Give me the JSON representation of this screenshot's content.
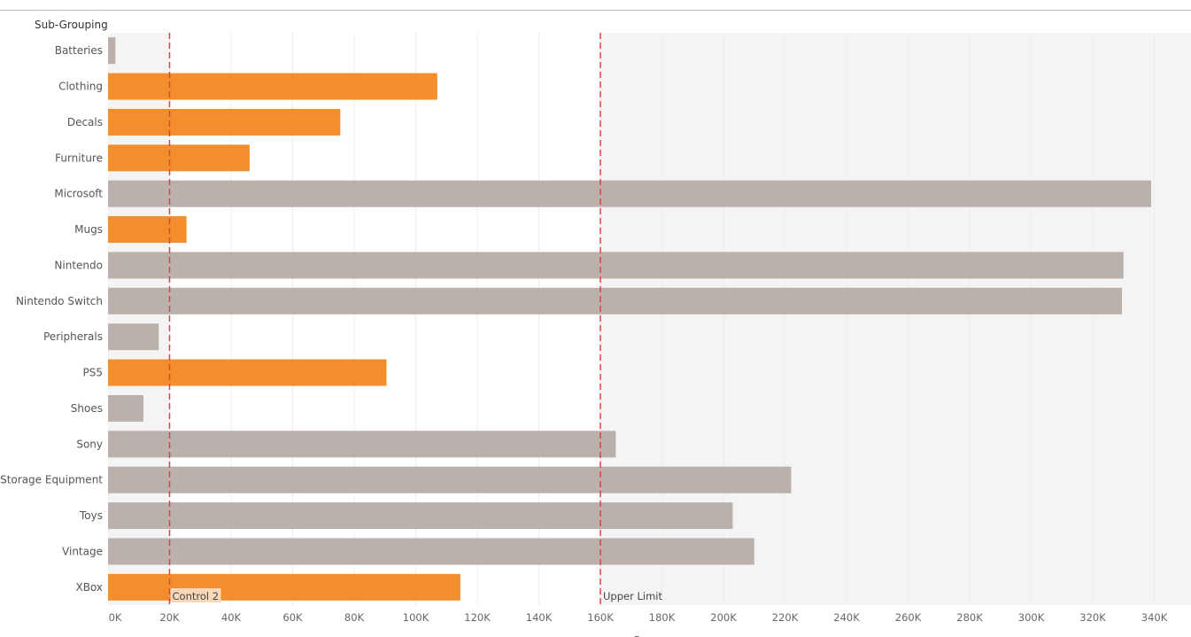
{
  "header": {
    "title": "Sub-Grouping"
  },
  "chart_data": {
    "type": "bar",
    "orientation": "horizontal",
    "title": "",
    "row_header": "Sub-Grouping",
    "xlabel": "R",
    "xlim": [
      0,
      350000
    ],
    "x_ticks": [
      0,
      20000,
      40000,
      60000,
      80000,
      100000,
      120000,
      140000,
      160000,
      180000,
      200000,
      220000,
      240000,
      260000,
      280000,
      300000,
      320000,
      340000
    ],
    "x_tick_labels": [
      "0K",
      "20K",
      "40K",
      "60K",
      "80K",
      "100K",
      "120K",
      "140K",
      "160K",
      "180K",
      "200K",
      "220K",
      "240K",
      "260K",
      "280K",
      "300K",
      "320K",
      "340K"
    ],
    "categories": [
      "Batteries",
      "Clothing",
      "Decals",
      "Furniture",
      "Microsoft",
      "Mugs",
      "Nintendo",
      "Nintendo Switch",
      "Peripherals",
      "PS5",
      "Shoes",
      "Sony",
      "Storage Equipment",
      "Toys",
      "Vintage",
      "XBox"
    ],
    "values": [
      2400,
      107000,
      75500,
      46000,
      339000,
      25500,
      330000,
      329500,
      16500,
      90500,
      11500,
      165000,
      222000,
      203000,
      210000,
      114500
    ],
    "in_band": [
      false,
      true,
      true,
      true,
      false,
      true,
      false,
      false,
      false,
      true,
      false,
      false,
      false,
      false,
      false,
      true
    ],
    "reference_lines": [
      {
        "label": "Control 2",
        "value": 20000
      },
      {
        "label": "Upper Limit",
        "value": 160000
      }
    ],
    "grid": true,
    "colors": {
      "in_band_bar": "#F28E2B",
      "out_band_bar": "#BAB0AC",
      "reference_line": "#D9463F",
      "band_outside": "#F4F4F4",
      "control_label_bg": "#F9D7B8"
    }
  }
}
